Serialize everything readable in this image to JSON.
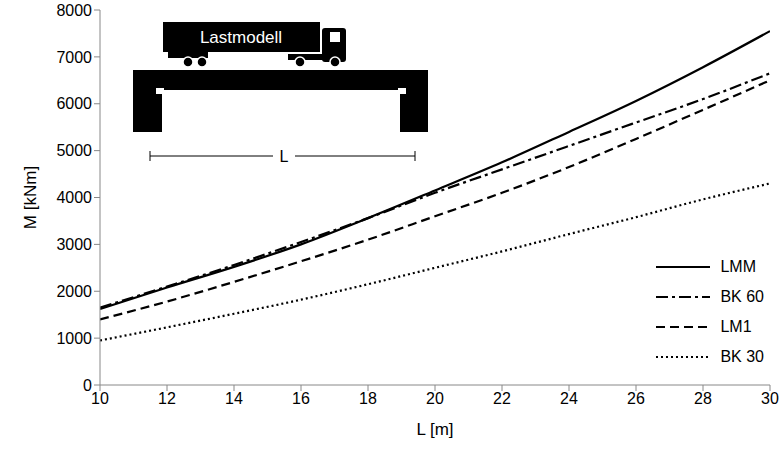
{
  "chart_data": {
    "type": "line",
    "x_label": "L [m]",
    "y_label": "M [kNm]",
    "annotations": [
      {
        "text": "Lastmodell"
      },
      {
        "text": "L"
      }
    ],
    "x": [
      10,
      12,
      14,
      16,
      18,
      20,
      22,
      24,
      26,
      28,
      30
    ],
    "series": [
      {
        "name": "LMM",
        "color": "#000000",
        "line_style": "solid",
        "values": [
          1620,
          2080,
          2520,
          3000,
          3560,
          4150,
          4750,
          5400,
          6060,
          6780,
          7550
        ]
      },
      {
        "name": "BK 60",
        "color": "#000000",
        "line_style": "dashdot",
        "values": [
          1650,
          2100,
          2560,
          3050,
          3560,
          4100,
          4600,
          5100,
          5600,
          6100,
          6650
        ]
      },
      {
        "name": "LM1",
        "color": "#000000",
        "line_style": "dashed",
        "values": [
          1400,
          1780,
          2200,
          2640,
          3100,
          3600,
          4100,
          4650,
          5250,
          5870,
          6500
        ]
      },
      {
        "name": "BK 30",
        "color": "#000000",
        "line_style": "dotted",
        "values": [
          950,
          1230,
          1520,
          1820,
          2150,
          2500,
          2850,
          3220,
          3580,
          3960,
          4300
        ]
      }
    ],
    "xlim": [
      10,
      30
    ],
    "xticks": [
      10,
      12,
      14,
      16,
      18,
      20,
      22,
      24,
      26,
      28,
      30
    ],
    "ylim": [
      0,
      8000
    ],
    "yticks": [
      0,
      1000,
      2000,
      3000,
      4000,
      5000,
      6000,
      7000,
      8000
    ],
    "grid": false,
    "legend": "lower right"
  }
}
